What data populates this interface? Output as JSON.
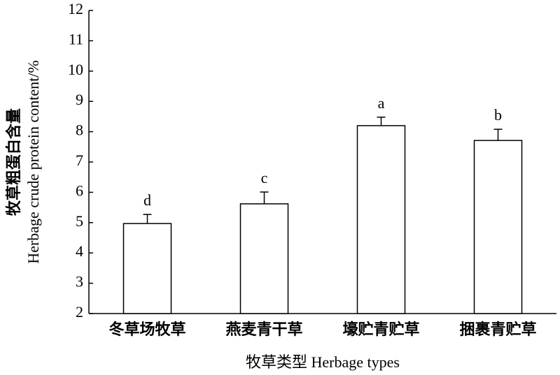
{
  "chart_data": {
    "type": "bar",
    "y_label_lines": [
      "牧草粗蛋白含量",
      "Herbage crude protein content/%"
    ],
    "x_label": "牧草类型 Herbage types",
    "categories": [
      "冬草场牧草",
      "燕麦青干草",
      "壕贮青贮草",
      "捆裹青贮草"
    ],
    "values": [
      4.97,
      5.62,
      8.2,
      7.71
    ],
    "errors": [
      0.3,
      0.39,
      0.28,
      0.37
    ],
    "annotations": [
      "d",
      "c",
      "a",
      "b"
    ],
    "color": "#ffffff",
    "ylim": [
      2,
      12
    ],
    "yticks": [
      2,
      3,
      4,
      5,
      6,
      7,
      8,
      9,
      10,
      11,
      12
    ]
  }
}
